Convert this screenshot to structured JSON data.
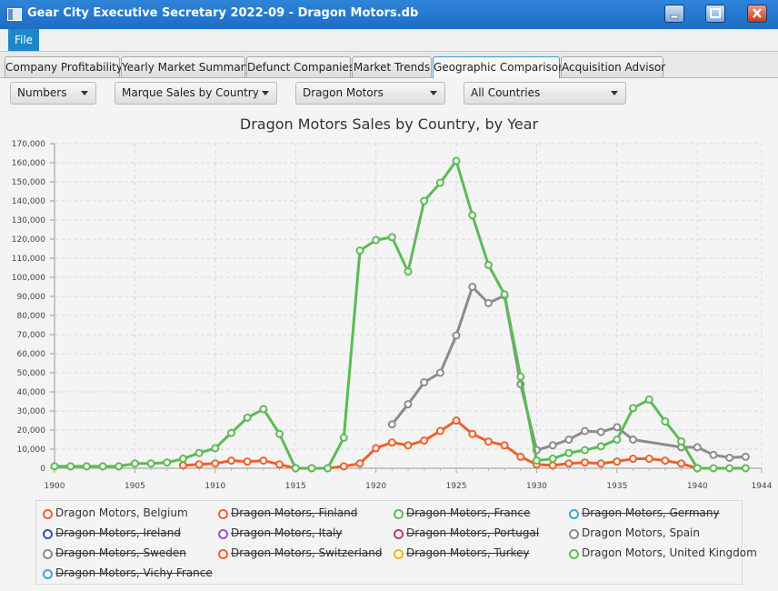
{
  "window": {
    "title": "Gear City Executive Secretary 2022-09 - Dragon Motors.db"
  },
  "menu": {
    "file": "File"
  },
  "tabs": [
    {
      "label": "Company Profitability",
      "active": false
    },
    {
      "label": "Yearly Market Summary",
      "active": false
    },
    {
      "label": "Defunct Companies",
      "active": false
    },
    {
      "label": "Market Trends",
      "active": false
    },
    {
      "label": "Geographic Comparison",
      "active": true
    },
    {
      "label": "Acquisition Advisor",
      "active": false
    }
  ],
  "filters": {
    "mode": "Numbers",
    "report": "Marque Sales by Country",
    "company": "Dragon Motors",
    "country": "All Countries"
  },
  "chart_data": {
    "type": "line",
    "title": "Dragon Motors Sales by Country, by Year",
    "xlim": [
      1900,
      1944
    ],
    "ylim": [
      0,
      170000
    ],
    "x_ticks": [
      1900,
      1905,
      1910,
      1915,
      1920,
      1925,
      1930,
      1935,
      1940,
      1944
    ],
    "y_ticks": [
      "0",
      "10,000",
      "20,000",
      "30,000",
      "40,000",
      "50,000",
      "60,000",
      "70,000",
      "80,000",
      "90,000",
      "100,000",
      "110,000",
      "120,000",
      "130,000",
      "140,000",
      "150,000",
      "160,000",
      "170,000"
    ],
    "y_tick_values": [
      0,
      10000,
      20000,
      30000,
      40000,
      50000,
      60000,
      70000,
      80000,
      90000,
      100000,
      110000,
      120000,
      130000,
      140000,
      150000,
      160000,
      170000
    ],
    "grid": true,
    "legend_position": "bottom",
    "series": [
      {
        "name": "Dragon Motors, Belgium",
        "color": "#f0602a",
        "visible": true,
        "points": [
          [
            1908,
            1500
          ],
          [
            1909,
            2000
          ],
          [
            1910,
            2500
          ],
          [
            1911,
            4000
          ],
          [
            1912,
            3500
          ],
          [
            1913,
            4000
          ],
          [
            1914,
            2000
          ],
          [
            1915,
            0
          ],
          [
            1916,
            0
          ],
          [
            1917,
            0
          ],
          [
            1918,
            1000
          ],
          [
            1919,
            2500
          ],
          [
            1920,
            10500
          ],
          [
            1921,
            13500
          ],
          [
            1922,
            12000
          ],
          [
            1923,
            14500
          ],
          [
            1924,
            19500
          ],
          [
            1925,
            25000
          ],
          [
            1926,
            18000
          ],
          [
            1927,
            14000
          ],
          [
            1928,
            12000
          ],
          [
            1929,
            6000
          ],
          [
            1930,
            2000
          ],
          [
            1931,
            1500
          ],
          [
            1932,
            2500
          ],
          [
            1933,
            3000
          ],
          [
            1934,
            2500
          ],
          [
            1935,
            3500
          ],
          [
            1936,
            5000
          ],
          [
            1937,
            5000
          ],
          [
            1938,
            4000
          ],
          [
            1939,
            2500
          ],
          [
            1940,
            0
          ]
        ]
      },
      {
        "name": "Dragon Motors, Finland",
        "color": "#f0602a",
        "visible": false,
        "points": []
      },
      {
        "name": "Dragon Motors, France",
        "color": "#5cbb55",
        "visible": false,
        "points": []
      },
      {
        "name": "Dragon Motors, Germany",
        "color": "#3aa9c8",
        "visible": false,
        "points": []
      },
      {
        "name": "Dragon Motors, Ireland",
        "color": "#3551b5",
        "visible": false,
        "points": []
      },
      {
        "name": "Dragon Motors, Italy",
        "color": "#a04fd0",
        "visible": false,
        "points": []
      },
      {
        "name": "Dragon Motors, Portugal",
        "color": "#c8385e",
        "visible": false,
        "points": []
      },
      {
        "name": "Dragon Motors, Spain",
        "color": "#8c8c8c",
        "visible": true,
        "points": [
          [
            1921,
            23000
          ],
          [
            1922,
            33500
          ],
          [
            1923,
            45000
          ],
          [
            1924,
            50000
          ],
          [
            1925,
            69500
          ],
          [
            1926,
            95000
          ],
          [
            1927,
            86500
          ],
          [
            1928,
            90500
          ],
          [
            1929,
            44000
          ],
          [
            1930,
            9500
          ],
          [
            1931,
            12000
          ],
          [
            1932,
            15000
          ],
          [
            1933,
            19500
          ],
          [
            1934,
            19000
          ],
          [
            1935,
            21500
          ],
          [
            1936,
            15000
          ],
          [
            1939,
            11000
          ],
          [
            1940,
            11000
          ],
          [
            1941,
            7000
          ],
          [
            1942,
            5500
          ],
          [
            1943,
            6000
          ]
        ]
      },
      {
        "name": "Dragon Motors, Sweden",
        "color": "#8c8c8c",
        "visible": false,
        "points": []
      },
      {
        "name": "Dragon Motors, Switzerland",
        "color": "#f0602a",
        "visible": false,
        "points": []
      },
      {
        "name": "Dragon Motors, Turkey",
        "color": "#f2b323",
        "visible": false,
        "points": []
      },
      {
        "name": "Dragon Motors, United Kingdom",
        "color": "#5cbb55",
        "visible": true,
        "points": [
          [
            1900,
            1000
          ],
          [
            1901,
            1000
          ],
          [
            1902,
            1000
          ],
          [
            1903,
            1000
          ],
          [
            1904,
            1000
          ],
          [
            1905,
            2500
          ],
          [
            1906,
            2500
          ],
          [
            1907,
            3000
          ],
          [
            1908,
            5000
          ],
          [
            1909,
            8000
          ],
          [
            1910,
            10500
          ],
          [
            1911,
            18500
          ],
          [
            1912,
            26500
          ],
          [
            1913,
            31000
          ],
          [
            1914,
            18000
          ],
          [
            1915,
            0
          ],
          [
            1916,
            0
          ],
          [
            1917,
            0
          ],
          [
            1918,
            16000
          ],
          [
            1919,
            114000
          ],
          [
            1920,
            119500
          ],
          [
            1921,
            121000
          ],
          [
            1922,
            103000
          ],
          [
            1923,
            140000
          ],
          [
            1924,
            149500
          ],
          [
            1925,
            161000
          ],
          [
            1926,
            132500
          ],
          [
            1927,
            106500
          ],
          [
            1928,
            91000
          ],
          [
            1929,
            48000
          ],
          [
            1930,
            4000
          ],
          [
            1931,
            5000
          ],
          [
            1932,
            8000
          ],
          [
            1933,
            9500
          ],
          [
            1934,
            11500
          ],
          [
            1935,
            15000
          ],
          [
            1936,
            31500
          ],
          [
            1937,
            36000
          ],
          [
            1938,
            24500
          ],
          [
            1939,
            14000
          ],
          [
            1940,
            0
          ],
          [
            1941,
            0
          ],
          [
            1942,
            0
          ],
          [
            1943,
            0
          ]
        ]
      },
      {
        "name": "Dragon Motors, Vichy France",
        "color": "#3aa9c8",
        "visible": false,
        "points": []
      }
    ]
  }
}
